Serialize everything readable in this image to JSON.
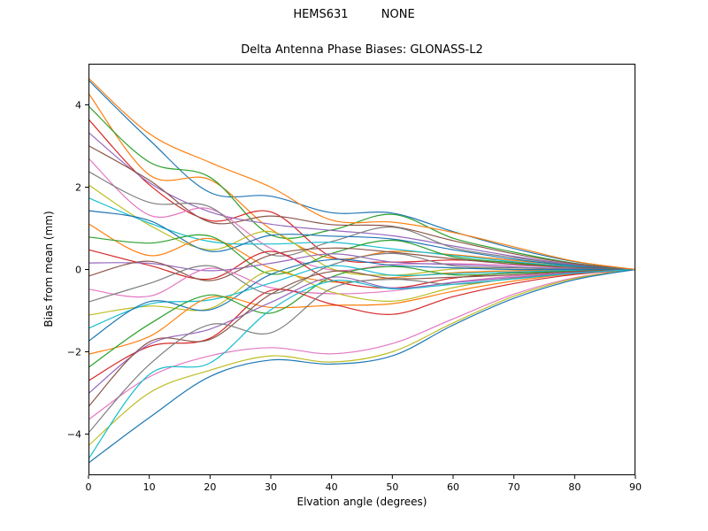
{
  "figure": {
    "suptitle": "HEMS631         NONE",
    "title": "Delta Antenna Phase Biases: GLONASS-L2",
    "xlabel": "Elvation angle (degrees)",
    "ylabel": "Bias from mean (mm)"
  },
  "chart_data": {
    "type": "line",
    "suptitle": "HEMS631         NONE",
    "title": "Delta Antenna Phase Biases: GLONASS-L2",
    "xlabel": "Elvation angle (degrees)",
    "ylabel": "Bias from mean (mm)",
    "xlim": [
      0,
      90
    ],
    "ylim": [
      -5,
      5
    ],
    "xticks": [
      0,
      10,
      20,
      30,
      40,
      50,
      60,
      70,
      80,
      90
    ],
    "yticks": [
      -4,
      -2,
      0,
      2,
      4
    ],
    "grid": false,
    "legend": "none",
    "spine_color": "#000000",
    "line_width": 1.2,
    "palette": [
      "#1f77b4",
      "#ff7f0e",
      "#2ca02c",
      "#d62728",
      "#9467bd",
      "#8c564b",
      "#e377c2",
      "#7f7f7f",
      "#bcbd22",
      "#17becf"
    ],
    "x": [
      0,
      10,
      20,
      30,
      40,
      50,
      60,
      70,
      80,
      90
    ],
    "series": [
      [
        4.6,
        3.15,
        1.87,
        1.78,
        1.38,
        1.37,
        0.92,
        0.51,
        0.19,
        0
      ],
      [
        4.28,
        2.3,
        2.18,
        0.98,
        0.27,
        0.44,
        0.36,
        0.22,
        0.09,
        0
      ],
      [
        3.97,
        2.61,
        2.24,
        0.84,
        0.96,
        1.34,
        0.76,
        0.42,
        0.15,
        0
      ],
      [
        3.65,
        2.06,
        1.19,
        1.4,
        0.31,
        0.18,
        0.23,
        0.17,
        0.07,
        0
      ],
      [
        3.33,
        2.11,
        1.4,
        1.1,
        0.95,
        0.82,
        0.57,
        0.32,
        0.12,
        0
      ],
      [
        3.01,
        2.17,
        1.15,
        1.3,
        1.09,
        1.05,
        0.7,
        0.38,
        0.14,
        0
      ],
      [
        2.7,
        1.32,
        1.47,
        0.51,
        -0.01,
        0.12,
        0.14,
        0.1,
        0.04,
        0
      ],
      [
        2.38,
        1.63,
        1.52,
        0.36,
        0.68,
        1.03,
        0.53,
        0.29,
        0.1,
        0
      ],
      [
        2.06,
        1.08,
        0.48,
        0.92,
        0.02,
        -0.14,
        0.01,
        0.04,
        0.02,
        0
      ],
      [
        1.74,
        1.13,
        0.68,
        0.62,
        0.66,
        0.5,
        0.34,
        0.19,
        0.07,
        0
      ],
      [
        1.43,
        1.19,
        0.44,
        0.83,
        0.81,
        0.74,
        0.48,
        0.25,
        0.09,
        0
      ],
      [
        1.11,
        0.34,
        0.75,
        0.03,
        -0.3,
        -0.2,
        -0.08,
        -0.03,
        -0.01,
        0
      ],
      [
        0.79,
        0.64,
        0.81,
        -0.11,
        0.39,
        0.71,
        0.31,
        0.16,
        0.05,
        0
      ],
      [
        0.48,
        0.1,
        -0.23,
        0.44,
        -0.26,
        -0.45,
        -0.21,
        -0.08,
        -0.03,
        0
      ],
      [
        0.16,
        0.15,
        -0.03,
        0.15,
        0.38,
        0.18,
        0.12,
        0.06,
        0.02,
        0
      ],
      [
        -0.16,
        0.2,
        -0.27,
        0.35,
        0.52,
        0.42,
        0.26,
        0.13,
        0.05,
        0
      ],
      [
        -0.48,
        -0.65,
        0.03,
        -0.44,
        -0.59,
        -0.52,
        -0.31,
        -0.16,
        -0.05,
        0
      ],
      [
        -0.79,
        -0.34,
        0.09,
        -0.59,
        0.11,
        0.39,
        0.09,
        0.04,
        0.01,
        0
      ],
      [
        -1.11,
        -0.89,
        -0.95,
        -0.03,
        -0.55,
        -0.77,
        -0.44,
        -0.21,
        -0.07,
        0
      ],
      [
        -1.43,
        -0.84,
        -0.74,
        -0.33,
        0.09,
        -0.14,
        -0.1,
        -0.06,
        -0.02,
        0
      ],
      [
        -1.74,
        -0.78,
        -0.98,
        -0.12,
        0.24,
        0.1,
        0.04,
        0.0,
        0.0,
        0
      ],
      [
        -2.06,
        -1.63,
        -0.68,
        -0.92,
        -0.87,
        -0.83,
        -0.53,
        -0.28,
        -0.1,
        0
      ],
      [
        -2.38,
        -1.33,
        -0.62,
        -1.06,
        -0.18,
        0.07,
        -0.13,
        -0.09,
        -0.04,
        0
      ],
      [
        -2.7,
        -1.87,
        -1.67,
        -0.51,
        -0.84,
        -1.09,
        -0.66,
        -0.34,
        -0.12,
        0
      ],
      [
        -3.01,
        -1.82,
        -1.45,
        -0.8,
        -0.19,
        -0.45,
        -0.32,
        -0.19,
        -0.07,
        0
      ],
      [
        -3.33,
        -1.76,
        -1.7,
        -0.6,
        -0.05,
        -0.22,
        -0.19,
        -0.13,
        -0.05,
        0
      ],
      [
        -3.65,
        -2.61,
        -2.1,
        -1.9,
        -2.05,
        -1.8,
        -1.2,
        -0.6,
        -0.2,
        0
      ],
      [
        -3.97,
        -2.31,
        -1.34,
        -1.54,
        -0.46,
        -0.24,
        -0.36,
        -0.22,
        -0.09,
        0
      ],
      [
        -4.28,
        -3.0,
        -2.45,
        -2.1,
        -2.25,
        -2.0,
        -1.3,
        -0.65,
        -0.22,
        0
      ],
      [
        -4.6,
        -2.55,
        -2.27,
        -0.98,
        -0.28,
        -0.47,
        -0.36,
        -0.23,
        -0.09,
        0
      ],
      [
        -4.7,
        -3.6,
        -2.6,
        -2.2,
        -2.3,
        -2.1,
        -1.35,
        -0.7,
        -0.25,
        0
      ],
      [
        4.65,
        3.3,
        2.6,
        2.0,
        1.2,
        1.15,
        0.9,
        0.55,
        0.2,
        0
      ]
    ]
  }
}
